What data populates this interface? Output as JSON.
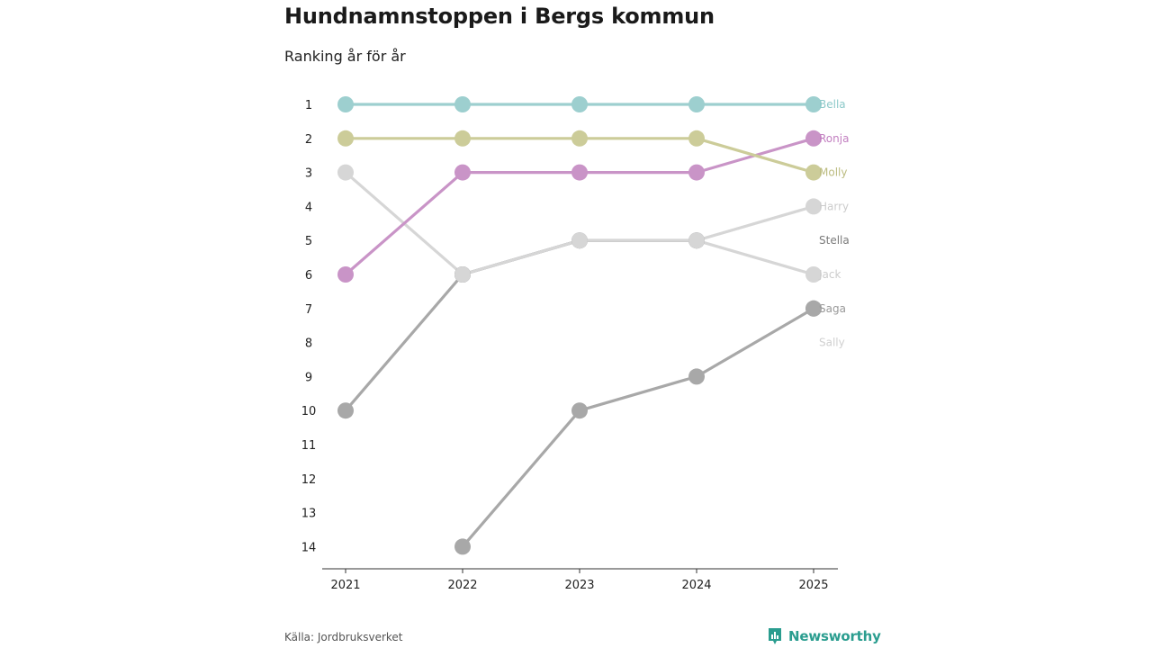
{
  "title": "Hundnamnstoppen i Bergs kommun",
  "subtitle": "Ranking år för år",
  "source": "Källa: Jordbruksverket",
  "brand": "Newsworthy",
  "chart_data": {
    "type": "line",
    "subtype": "bump",
    "xlabel": "",
    "ylabel": "",
    "x": [
      "2021",
      "2022",
      "2023",
      "2024",
      "2025"
    ],
    "y_ticks": [
      "1",
      "2",
      "3",
      "4",
      "5",
      "6",
      "7",
      "8",
      "9",
      "10",
      "11",
      "12",
      "13",
      "14"
    ],
    "ylim": [
      1,
      14
    ],
    "y_inverted": true,
    "series": [
      {
        "name": "Bella",
        "color": "#9dcfcf",
        "label_color": "#8cc9c9",
        "values": [
          1,
          1,
          1,
          1,
          1
        ]
      },
      {
        "name": "Molly",
        "color": "#cccc99",
        "label_color": "#bcbc80",
        "values": [
          2,
          2,
          2,
          2,
          3
        ]
      },
      {
        "name": "Ronja",
        "color": "#c994c7",
        "label_color": "#c27fc0",
        "values": [
          6,
          3,
          3,
          3,
          2
        ]
      },
      {
        "name": "Harry",
        "color": "#d6d6d6",
        "label_color": "#cccccc",
        "values": [
          3,
          6,
          5,
          5,
          4
        ]
      },
      {
        "name": "Stella",
        "color": "#6f6f75",
        "label_color": "#7a7a7a",
        "values": [
          null,
          6,
          5,
          5,
          null
        ]
      },
      {
        "name": "Jack",
        "color": "#d6d6d6",
        "label_color": "#cccccc",
        "values": [
          null,
          null,
          null,
          5,
          6
        ]
      },
      {
        "name": "Saga",
        "color": "#a8a8a8",
        "label_color": "#999999",
        "values": [
          10,
          6,
          null,
          null,
          7
        ]
      },
      {
        "name": "Sally",
        "color": "#a8a8a8",
        "label_color": "#d0d0d0",
        "values": [
          null,
          14,
          10,
          9,
          7
        ]
      }
    ],
    "end_labels": [
      {
        "name": "Bella",
        "rank": 1
      },
      {
        "name": "Ronja",
        "rank": 2
      },
      {
        "name": "Molly",
        "rank": 3
      },
      {
        "name": "Harry",
        "rank": 4
      },
      {
        "name": "Stella",
        "rank": 5
      },
      {
        "name": "Jack",
        "rank": 6
      },
      {
        "name": "Saga",
        "rank": 7
      },
      {
        "name": "Sally",
        "rank": 8
      }
    ]
  }
}
